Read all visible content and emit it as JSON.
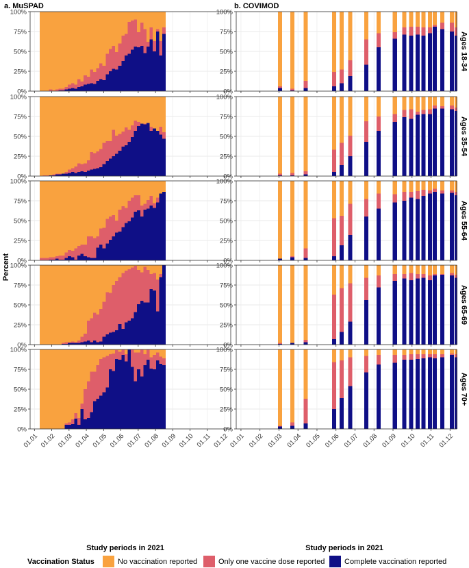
{
  "colors": {
    "none": "#F9A23F",
    "one": "#DE5E6A",
    "complete": "#0F0F86"
  },
  "chart_data": {
    "type": "bar",
    "stacked": true,
    "panel_titles": [
      "a. MuSPAD",
      "b. COVIMOD"
    ],
    "row_labels": [
      "Ages 18-34",
      "Ages 35-54",
      "Ages 55-64",
      "Ages 65-69",
      "Ages 70+"
    ],
    "ylabel": "Percent",
    "xlabel": "Study periods in 2021",
    "y_ticks": [
      "0%",
      "25%",
      "50%",
      "75%",
      "100%"
    ],
    "x_ticks": [
      "01.01",
      "01.02",
      "01.03",
      "01.04",
      "01.05",
      "01.06",
      "01.07",
      "01.08",
      "01.09",
      "01.10",
      "01.11",
      "01.12"
    ],
    "ylim": [
      0,
      100
    ],
    "xlim_months": [
      0.75,
      12.35
    ],
    "legend": {
      "title": "Vaccination Status",
      "items": [
        {
          "key": "none",
          "label": "No vaccination reported"
        },
        {
          "key": "one",
          "label": "Only one vaccine dose reported"
        },
        {
          "key": "complete",
          "label": "Complete vaccination reported"
        }
      ]
    },
    "muspad": {
      "x_start": 1.3,
      "x_end": 8.57,
      "bins": 40,
      "rows": [
        {
          "complete": [
            0,
            0,
            0,
            0,
            0,
            0,
            1,
            1,
            2,
            3,
            4,
            3,
            5,
            6,
            8,
            9,
            10,
            9,
            13,
            15,
            14,
            21,
            25,
            28,
            27,
            32,
            38,
            45,
            47,
            52,
            56,
            55,
            57,
            48,
            56,
            65,
            50,
            75,
            45,
            72
          ],
          "cum_one": [
            0,
            0,
            0,
            2,
            1,
            2,
            3,
            3,
            5,
            8,
            10,
            8,
            15,
            12,
            20,
            18,
            27,
            24,
            29,
            35,
            32,
            47,
            53,
            57,
            49,
            60,
            70,
            72,
            87,
            89,
            90,
            74,
            86,
            78,
            62,
            80,
            63,
            78,
            63,
            80
          ]
        },
        {
          "complete": [
            0,
            0,
            0,
            1,
            1,
            2,
            2,
            3,
            3,
            4,
            5,
            4,
            5,
            6,
            5,
            7,
            8,
            9,
            10,
            11,
            15,
            19,
            22,
            25,
            28,
            32,
            37,
            39,
            43,
            49,
            57,
            63,
            66,
            65,
            67,
            57,
            60,
            57,
            52,
            47
          ],
          "cum_one": [
            0,
            1,
            1,
            1,
            2,
            3,
            3,
            3,
            5,
            8,
            10,
            12,
            16,
            15,
            16,
            20,
            30,
            29,
            31,
            34,
            42,
            44,
            44,
            58,
            51,
            53,
            56,
            61,
            58,
            64,
            70,
            68,
            65,
            66,
            66,
            62,
            58,
            56,
            62,
            55
          ]
        },
        {
          "complete": [
            0,
            0,
            0,
            1,
            1,
            2,
            1,
            1,
            3,
            5,
            4,
            1,
            6,
            8,
            5,
            4,
            3,
            3,
            16,
            20,
            15,
            21,
            26,
            30,
            35,
            36,
            42,
            47,
            49,
            54,
            61,
            63,
            55,
            64,
            65,
            69,
            66,
            73,
            84,
            86
          ],
          "cum_one": [
            3,
            3,
            3,
            4,
            4,
            5,
            6,
            6,
            10,
            13,
            12,
            15,
            18,
            20,
            20,
            30,
            30,
            28,
            30,
            40,
            41,
            52,
            55,
            57,
            50,
            64,
            68,
            66,
            75,
            79,
            82,
            82,
            69,
            71,
            76,
            81,
            72,
            79,
            78,
            86
          ]
        },
        {
          "complete": [
            0,
            0,
            0,
            0,
            0,
            0,
            0,
            1,
            1,
            2,
            2,
            2,
            2,
            3,
            4,
            5,
            3,
            5,
            3,
            4,
            10,
            13,
            15,
            16,
            18,
            26,
            20,
            28,
            30,
            33,
            41,
            51,
            55,
            53,
            53,
            70,
            68,
            42,
            85,
            100
          ],
          "cum_one": [
            0,
            0,
            0,
            0,
            0,
            0,
            0,
            2,
            3,
            3,
            4,
            3,
            5,
            10,
            14,
            30,
            33,
            40,
            38,
            45,
            54,
            66,
            65,
            75,
            80,
            85,
            90,
            93,
            95,
            97,
            99,
            94,
            91,
            98,
            94,
            89,
            90,
            82,
            89,
            100
          ]
        },
        {
          "complete": [
            0,
            0,
            0,
            0,
            0,
            0,
            0,
            0,
            5,
            5,
            6,
            13,
            5,
            25,
            12,
            14,
            21,
            35,
            38,
            42,
            46,
            52,
            75,
            73,
            88,
            87,
            93,
            85,
            100,
            78,
            60,
            75,
            66,
            80,
            87,
            76,
            75,
            86,
            82,
            80
          ],
          "cum_one": [
            0,
            0,
            0,
            0,
            0,
            0,
            0,
            0,
            7,
            8,
            12,
            20,
            14,
            32,
            50,
            60,
            72,
            72,
            80,
            88,
            90,
            92,
            94,
            95,
            99,
            97,
            100,
            94,
            100,
            100,
            96,
            96,
            100,
            94,
            100,
            90,
            93,
            96,
            91,
            89
          ]
        }
      ]
    },
    "covimod": {
      "bar_width": 0.22,
      "rows": [
        {
          "x": [
            3.05,
            3.7,
            4.4,
            5.9,
            6.3,
            6.75,
            7.6,
            8.25,
            9.1,
            9.6,
            9.95,
            10.3,
            10.6,
            10.95,
            11.2,
            11.6,
            12.1,
            12.35
          ],
          "complete": [
            4,
            1,
            4,
            6,
            10,
            19,
            33,
            55,
            66,
            71,
            70,
            71,
            70,
            73,
            81,
            78,
            75,
            70
          ],
          "cum_one": [
            6,
            3,
            13,
            24,
            27,
            39,
            65,
            73,
            74,
            80,
            81,
            81,
            80,
            80,
            83,
            86,
            86,
            80
          ]
        },
        {
          "x": [
            3.05,
            3.7,
            4.4,
            5.9,
            6.3,
            6.75,
            7.6,
            8.25,
            9.1,
            9.6,
            9.95,
            10.3,
            10.6,
            10.95,
            11.2,
            11.6,
            12.1,
            12.35
          ],
          "complete": [
            1,
            1,
            2,
            5,
            14,
            25,
            43,
            57,
            68,
            74,
            72,
            77,
            78,
            78,
            85,
            85,
            84,
            82
          ],
          "cum_one": [
            3,
            4,
            6,
            33,
            42,
            51,
            69,
            75,
            78,
            83,
            84,
            81,
            83,
            84,
            89,
            88,
            89,
            86
          ]
        },
        {
          "x": [
            3.05,
            3.7,
            4.4,
            5.9,
            6.3,
            6.75,
            7.6,
            8.25,
            9.1,
            9.6,
            9.95,
            10.3,
            10.6,
            10.95,
            11.2,
            11.6,
            12.1,
            12.35
          ],
          "complete": [
            2,
            4,
            3,
            5,
            19,
            32,
            55,
            65,
            73,
            75,
            79,
            77,
            81,
            84,
            86,
            84,
            85,
            82
          ],
          "cum_one": [
            2,
            5,
            15,
            53,
            56,
            71,
            77,
            84,
            83,
            86,
            86,
            87,
            89,
            88,
            90,
            88,
            88,
            86
          ]
        },
        {
          "x": [
            3.05,
            3.7,
            4.4,
            5.9,
            6.3,
            6.75,
            7.6,
            8.25,
            9.1,
            9.6,
            9.95,
            10.3,
            10.6,
            10.95,
            11.2,
            11.6,
            12.1,
            12.35
          ],
          "complete": [
            1,
            2,
            3,
            7,
            16,
            29,
            56,
            72,
            80,
            83,
            81,
            83,
            84,
            81,
            87,
            88,
            87,
            84
          ],
          "cum_one": [
            2,
            2,
            6,
            63,
            71,
            77,
            84,
            87,
            89,
            89,
            90,
            89,
            89,
            87,
            89,
            89,
            90,
            88
          ]
        },
        {
          "x": [
            3.05,
            3.7,
            4.4,
            5.9,
            6.3,
            6.75,
            7.6,
            8.25,
            9.1,
            9.6,
            9.95,
            10.3,
            10.6,
            10.95,
            11.2,
            11.6,
            12.1,
            12.35
          ],
          "complete": [
            3,
            4,
            7,
            25,
            39,
            54,
            71,
            81,
            83,
            87,
            87,
            88,
            89,
            90,
            89,
            90,
            93,
            90
          ],
          "cum_one": [
            4,
            8,
            38,
            84,
            86,
            90,
            92,
            93,
            93,
            93,
            94,
            94,
            94,
            94,
            94,
            94,
            95,
            94
          ]
        }
      ]
    }
  }
}
